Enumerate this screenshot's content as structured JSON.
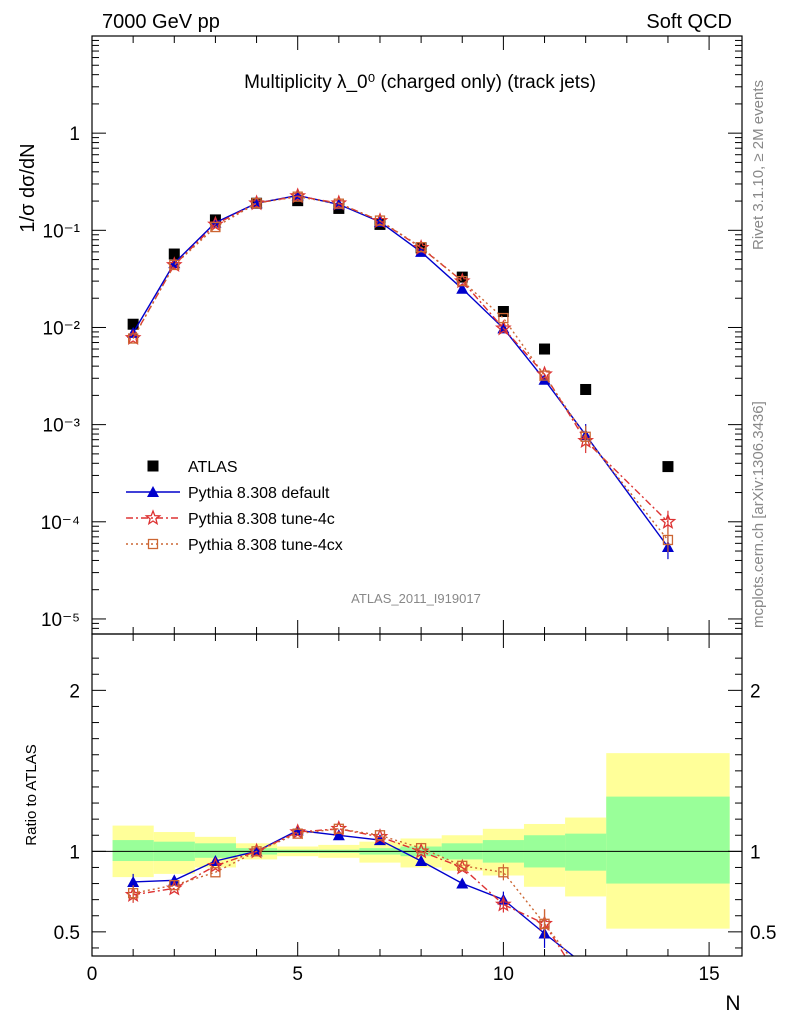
{
  "header": {
    "left": "7000 GeV pp",
    "right": "Soft QCD"
  },
  "side_labels": {
    "top": "Rivet 3.1.10, ≥ 2M events",
    "bottom": "mcplots.cern.ch [arXiv:1306.3436]"
  },
  "analysis_id": "ATLAS_2011_I919017",
  "chart_data": [
    {
      "type": "scatter",
      "title": "Multiplicity λ_0⁰ (charged only) (track jets)",
      "ylabel": "1/σ dσ/dN",
      "xlabel": "N",
      "y_scale": "log",
      "xlim": [
        0,
        15.8
      ],
      "ylim": [
        7e-06,
        10
      ],
      "x_ticks": [
        0,
        5,
        10,
        15
      ],
      "y_tick_labels": [
        "1",
        "10⁻¹",
        "10⁻²",
        "10⁻³",
        "10⁻⁴",
        "10⁻⁵"
      ],
      "legend_position": "bottom-left",
      "series": [
        {
          "name": "ATLAS",
          "style": "square",
          "color": "#000000",
          "x": [
            1,
            2,
            3,
            4,
            5,
            6,
            7,
            8,
            9,
            10,
            11,
            12,
            14
          ],
          "y": [
            0.0108,
            0.057,
            0.128,
            0.19,
            0.202,
            0.168,
            0.115,
            0.066,
            0.033,
            0.0146,
            0.006,
            0.0023,
            0.00037
          ]
        },
        {
          "name": "Pythia 8.308 default",
          "style": "triangle-line",
          "color": "#0000cc",
          "x": [
            1,
            2,
            3,
            4,
            5,
            6,
            7,
            8,
            9,
            10,
            11,
            12,
            14
          ],
          "y": [
            0.0088,
            0.046,
            0.12,
            0.19,
            0.228,
            0.185,
            0.122,
            0.06,
            0.025,
            0.0098,
            0.0029,
            0.00078,
            5.5e-05
          ]
        },
        {
          "name": "Pythia 8.308 tune-4c",
          "style": "star-dashdot",
          "color": "#dd3333",
          "x": [
            1,
            2,
            3,
            4,
            5,
            6,
            7,
            8,
            9,
            10,
            11,
            12,
            14
          ],
          "y": [
            0.0078,
            0.044,
            0.115,
            0.19,
            0.225,
            0.19,
            0.125,
            0.066,
            0.03,
            0.0098,
            0.0033,
            0.00068,
            0.0001
          ]
        },
        {
          "name": "Pythia 8.308 tune-4cx",
          "style": "opensquare-dotted",
          "color": "#cc6633",
          "x": [
            1,
            2,
            3,
            4,
            5,
            6,
            7,
            8,
            9,
            10,
            11,
            12,
            14
          ],
          "y": [
            0.0077,
            0.044,
            0.108,
            0.19,
            0.222,
            0.188,
            0.126,
            0.067,
            0.03,
            0.0125,
            0.0032,
            0.00075,
            6.5e-05
          ]
        }
      ]
    },
    {
      "type": "line",
      "ylabel": "Ratio to ATLAS",
      "xlabel": "N",
      "xlim": [
        0,
        15.8
      ],
      "ylim": [
        0.35,
        2.35
      ],
      "x_ticks": [
        0,
        5,
        10,
        15
      ],
      "y_ticks": [
        0.5,
        1,
        2
      ],
      "reference_line": 1,
      "bands": {
        "bin_edges": [
          0.5,
          1.5,
          2.5,
          3.5,
          4.5,
          5.5,
          6.5,
          7.5,
          8.5,
          9.5,
          10.5,
          11.5,
          12.5,
          15.5
        ],
        "yellow": [
          [
            0.84,
            1.16
          ],
          [
            0.86,
            1.12
          ],
          [
            0.9,
            1.09
          ],
          [
            0.95,
            1.05
          ],
          [
            0.97,
            1.03
          ],
          [
            0.96,
            1.04
          ],
          [
            0.93,
            1.06
          ],
          [
            0.9,
            1.08
          ],
          [
            0.88,
            1.1
          ],
          [
            0.85,
            1.14
          ],
          [
            0.78,
            1.17
          ],
          [
            0.72,
            1.21
          ],
          [
            0.52,
            1.61
          ]
        ],
        "green": [
          [
            0.94,
            1.07
          ],
          [
            0.94,
            1.06
          ],
          [
            0.96,
            1.05
          ],
          [
            0.98,
            1.02
          ],
          [
            0.99,
            1.01
          ],
          [
            0.99,
            1.01
          ],
          [
            0.98,
            1.02
          ],
          [
            0.97,
            1.03
          ],
          [
            0.95,
            1.05
          ],
          [
            0.93,
            1.07
          ],
          [
            0.9,
            1.1
          ],
          [
            0.88,
            1.11
          ],
          [
            0.8,
            1.34
          ]
        ]
      },
      "series": [
        {
          "name": "Pythia 8.308 default",
          "color": "#0000cc",
          "x": [
            1,
            2,
            3,
            4,
            5,
            6,
            7,
            8,
            9,
            10,
            11,
            11.7
          ],
          "y": [
            0.81,
            0.82,
            0.94,
            1.0,
            1.13,
            1.1,
            1.07,
            0.94,
            0.8,
            0.7,
            0.49,
            0.35
          ]
        },
        {
          "name": "Pythia 8.308 tune-4c",
          "color": "#dd3333",
          "x": [
            1,
            2,
            3,
            4,
            5,
            6,
            7,
            8,
            9,
            10,
            11,
            11.5
          ],
          "y": [
            0.73,
            0.77,
            0.91,
            1.0,
            1.12,
            1.14,
            1.09,
            1.0,
            0.9,
            0.67,
            0.55,
            0.35
          ]
        },
        {
          "name": "Pythia 8.308 tune-4cx",
          "color": "#cc6633",
          "x": [
            1,
            2,
            3,
            4,
            5,
            6,
            7,
            8,
            9,
            10,
            11,
            11.6
          ],
          "y": [
            0.74,
            0.79,
            0.87,
            1.0,
            1.11,
            1.14,
            1.1,
            1.02,
            0.91,
            0.87,
            0.55,
            0.35
          ]
        }
      ]
    }
  ]
}
